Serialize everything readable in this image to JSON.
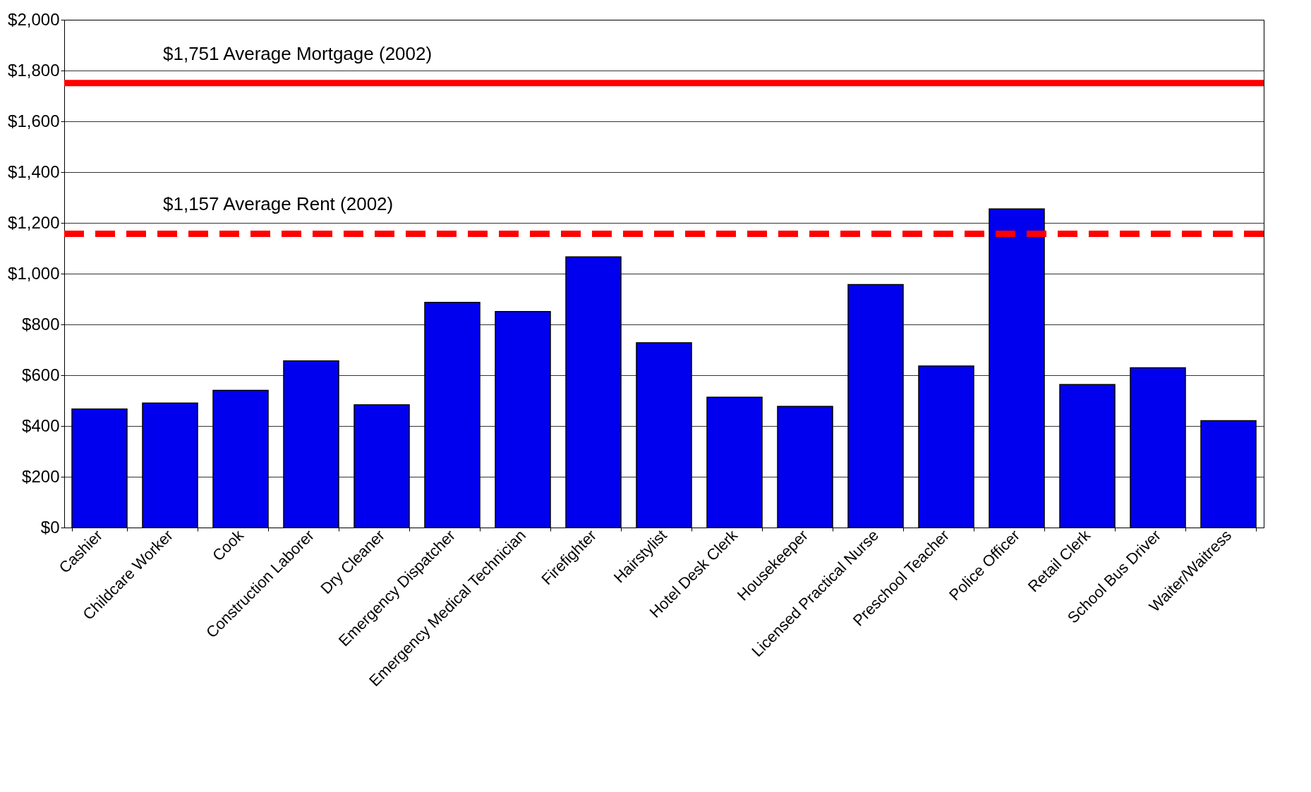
{
  "chart_data": {
    "type": "bar",
    "categories": [
      "Cashier",
      "Childcare Worker",
      "Cook",
      "Construction Laborer",
      "Dry Cleaner",
      "Emergency Dispatcher",
      "Emergency Medical Technician",
      "Firefighter",
      "Hairstylist",
      "Hotel Desk Clerk",
      "Housekeeper",
      "Licensed Practical Nurse",
      "Preschool Teacher",
      "Police Officer",
      "Retail Clerk",
      "School Bus Driver",
      "Waiter/Waitress"
    ],
    "values": [
      467,
      490,
      540,
      656,
      483,
      887,
      851,
      1066,
      728,
      513,
      477,
      957,
      636,
      1255,
      563,
      629,
      421
    ],
    "color": "#0000ee",
    "ylim": [
      0,
      2000
    ],
    "yticks": [
      {
        "value": 0,
        "label": "$0"
      },
      {
        "value": 200,
        "label": "$200"
      },
      {
        "value": 400,
        "label": "$400"
      },
      {
        "value": 600,
        "label": "$600"
      },
      {
        "value": 800,
        "label": "$800"
      },
      {
        "value": 1000,
        "label": "$1,000"
      },
      {
        "value": 1200,
        "label": "$1,200"
      },
      {
        "value": 1400,
        "label": "$1,400"
      },
      {
        "value": 1600,
        "label": "$1,600"
      },
      {
        "value": 1800,
        "label": "$1,800"
      },
      {
        "value": 2000,
        "label": "$2,000"
      }
    ],
    "grid": "y",
    "ref_lines": [
      {
        "axis": "y",
        "value": 1751,
        "label": "$1,751 Average Mortgage (2002)",
        "color": "#ff0000",
        "line_style": "solid"
      },
      {
        "axis": "y",
        "value": 1157,
        "label": "$1,157 Average Rent (2002)",
        "color": "#ff0000",
        "line_style": "dashed"
      }
    ]
  }
}
